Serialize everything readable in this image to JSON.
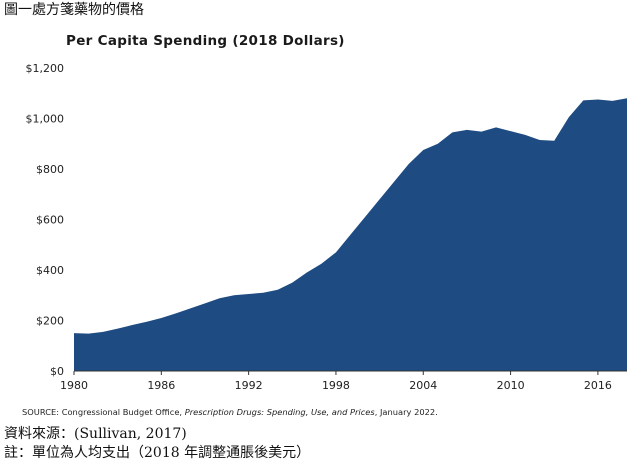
{
  "caption": "圖一處方箋藥物的價格",
  "source_label": "SOURCE: Congressional Budget Office, ",
  "source_title": "Prescription Drugs: Spending, Use, and Prices",
  "source_date": ", January 2022.",
  "reference": "資料來源：(Sullivan, 2017)",
  "note": "註：單位為人均支出（2018 年調整通脹後美元）",
  "chart_data": {
    "type": "area",
    "title": "Per Capita Spending (2018 Dollars)",
    "xlabel": "",
    "ylabel": "",
    "xlim": [
      1980,
      2018
    ],
    "ylim": [
      0,
      1200
    ],
    "x_ticks": [
      1980,
      1986,
      1992,
      1998,
      2004,
      2010,
      2016
    ],
    "y_ticks": [
      0,
      200,
      400,
      600,
      800,
      1000,
      1200
    ],
    "y_tick_labels": [
      "$0",
      "$200",
      "$400",
      "$600",
      "$800",
      "$1,000",
      "$1,200"
    ],
    "grid": false,
    "color": "#1e4b82",
    "x": [
      1980,
      1981,
      1982,
      1983,
      1984,
      1985,
      1986,
      1987,
      1988,
      1989,
      1990,
      1991,
      1992,
      1993,
      1994,
      1995,
      1996,
      1997,
      1998,
      1999,
      2000,
      2001,
      2002,
      2003,
      2004,
      2005,
      2006,
      2007,
      2008,
      2009,
      2010,
      2011,
      2012,
      2013,
      2014,
      2015,
      2016,
      2017,
      2018
    ],
    "values": [
      150,
      148,
      155,
      168,
      182,
      195,
      210,
      228,
      248,
      268,
      288,
      300,
      305,
      310,
      322,
      350,
      390,
      425,
      470,
      540,
      610,
      680,
      750,
      820,
      875,
      900,
      945,
      955,
      948,
      965,
      950,
      935,
      915,
      912,
      1005,
      1072,
      1075,
      1070,
      1080
    ]
  }
}
